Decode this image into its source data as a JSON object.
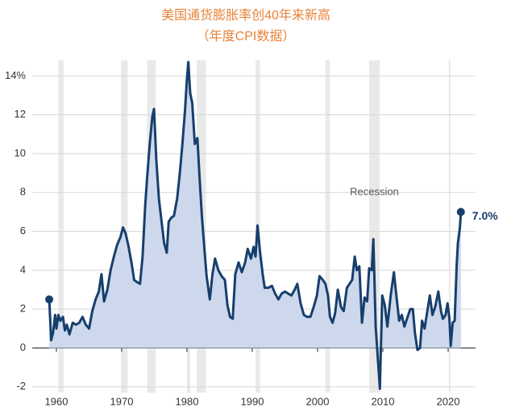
{
  "chart_data": {
    "type": "area",
    "title": "美国通货膨胀率创40年来新高",
    "subtitle": "（年度CPI数据）",
    "line_color": "#173f6d",
    "area_color": "#cdd8ec",
    "recession_color": "#e9e9e9",
    "grid": true,
    "xlim": [
      1956.3,
      2024.2
    ],
    "xticks": [
      1960,
      1970,
      1980,
      1990,
      2000,
      2010,
      2020
    ],
    "ylim": [
      -2.3,
      14.8
    ],
    "yticks": [
      -2,
      0,
      2,
      4,
      6,
      8,
      10,
      12,
      {
        "value": 14,
        "label": "14%"
      }
    ],
    "recession_label": "Recession",
    "recessions": [
      [
        1960.3,
        1961.1
      ],
      [
        1969.9,
        1970.9
      ],
      [
        1973.9,
        1975.2
      ],
      [
        1980.0,
        1980.5
      ],
      [
        1981.5,
        1982.9
      ],
      [
        1990.5,
        1991.2
      ],
      [
        2001.2,
        2001.9
      ],
      [
        2007.9,
        2009.5
      ],
      [
        2020.1,
        2020.3
      ]
    ],
    "end_label": {
      "value": 7.0,
      "label": "7.0%"
    },
    "x": [
      1958.9,
      1959.2,
      1959.5,
      1959.8,
      1960.0,
      1960.3,
      1960.6,
      1961.0,
      1961.3,
      1961.6,
      1962.0,
      1962.5,
      1963.0,
      1963.5,
      1964.0,
      1964.5,
      1965.0,
      1965.5,
      1966.0,
      1966.5,
      1966.9,
      1967.3,
      1967.8,
      1968.3,
      1968.8,
      1969.3,
      1969.8,
      1970.2,
      1970.6,
      1971.0,
      1971.5,
      1971.9,
      1972.3,
      1972.8,
      1973.2,
      1973.6,
      1973.9,
      1974.3,
      1974.7,
      1974.95,
      1975.3,
      1975.7,
      1976.0,
      1976.5,
      1976.9,
      1977.2,
      1977.6,
      1978.0,
      1978.5,
      1978.9,
      1979.3,
      1979.7,
      1980.0,
      1980.2,
      1980.5,
      1980.8,
      1981.2,
      1981.6,
      1981.9,
      1982.3,
      1982.7,
      1983.0,
      1983.5,
      1983.9,
      1984.3,
      1984.8,
      1985.3,
      1985.8,
      1986.2,
      1986.6,
      1987.0,
      1987.4,
      1987.9,
      1988.4,
      1988.9,
      1989.3,
      1989.8,
      1990.2,
      1990.5,
      1990.8,
      1991.2,
      1991.6,
      1991.9,
      1992.5,
      1993.0,
      1993.5,
      1994.0,
      1994.5,
      1995.0,
      1995.5,
      1996.0,
      1996.5,
      1996.9,
      1997.4,
      1997.9,
      1998.4,
      1998.9,
      1999.4,
      1999.9,
      2000.3,
      2000.8,
      2001.2,
      2001.6,
      2001.9,
      2002.3,
      2002.7,
      2003.1,
      2003.6,
      2004.0,
      2004.5,
      2004.9,
      2005.3,
      2005.7,
      2006.0,
      2006.4,
      2006.8,
      2007.2,
      2007.6,
      2007.9,
      2008.3,
      2008.55,
      2008.9,
      2009.2,
      2009.55,
      2009.9,
      2010.3,
      2010.7,
      2011.2,
      2011.7,
      2012.0,
      2012.5,
      2012.9,
      2013.3,
      2013.7,
      2014.2,
      2014.6,
      2014.9,
      2015.3,
      2015.7,
      2016.0,
      2016.4,
      2016.9,
      2017.2,
      2017.6,
      2018.0,
      2018.5,
      2018.9,
      2019.2,
      2019.6,
      2019.9,
      2020.2,
      2020.4,
      2020.7,
      2021.0,
      2021.3,
      2021.5,
      2021.8,
      2021.95
    ],
    "values": [
      2.5,
      0.4,
      0.8,
      1.7,
      1.0,
      1.7,
      1.4,
      1.6,
      0.9,
      1.2,
      0.7,
      1.3,
      1.2,
      1.3,
      1.6,
      1.2,
      1.0,
      1.9,
      2.5,
      2.9,
      3.8,
      2.4,
      3.0,
      4.0,
      4.7,
      5.3,
      5.7,
      6.2,
      5.9,
      5.3,
      4.4,
      3.5,
      3.4,
      3.3,
      4.7,
      7.3,
      8.8,
      10.5,
      11.9,
      12.3,
      9.7,
      7.7,
      6.8,
      5.4,
      4.9,
      6.5,
      6.7,
      6.8,
      7.7,
      9.0,
      10.5,
      12.2,
      13.9,
      14.7,
      13.1,
      12.6,
      10.5,
      10.8,
      8.9,
      6.7,
      5.0,
      3.7,
      2.5,
      3.8,
      4.6,
      4.0,
      3.7,
      3.5,
      2.2,
      1.6,
      1.5,
      3.8,
      4.4,
      3.9,
      4.4,
      5.1,
      4.6,
      5.2,
      4.7,
      6.3,
      4.9,
      3.8,
      3.1,
      3.1,
      3.2,
      2.8,
      2.5,
      2.8,
      2.9,
      2.8,
      2.7,
      3.0,
      3.3,
      2.3,
      1.7,
      1.6,
      1.6,
      2.1,
      2.7,
      3.7,
      3.5,
      3.3,
      2.7,
      1.6,
      1.3,
      1.8,
      3.0,
      2.1,
      1.9,
      3.1,
      3.3,
      3.5,
      4.7,
      4.0,
      4.2,
      1.3,
      2.6,
      2.4,
      4.1,
      4.0,
      5.6,
      1.1,
      -0.4,
      -2.1,
      2.7,
      2.2,
      1.1,
      2.7,
      3.9,
      2.9,
      1.4,
      1.7,
      1.1,
      1.5,
      2.0,
      2.0,
      0.8,
      -0.1,
      0.0,
      1.4,
      1.0,
      2.1,
      2.7,
      1.7,
      2.1,
      2.9,
      1.9,
      1.5,
      1.7,
      2.3,
      1.5,
      0.1,
      1.3,
      1.4,
      4.2,
      5.4,
      6.2,
      7.0
    ]
  }
}
